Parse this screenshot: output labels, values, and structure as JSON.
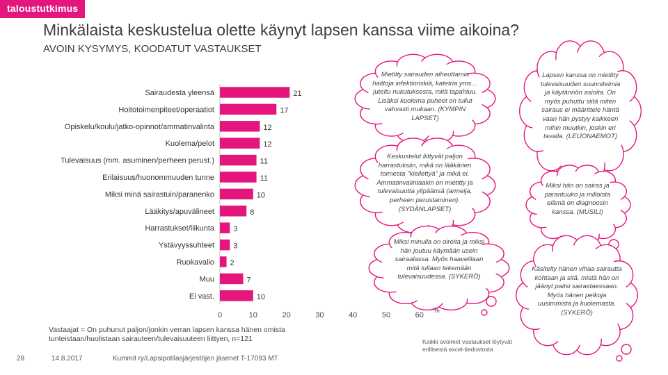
{
  "brand": "taloustutkimus",
  "title": "Minkälaista keskustelua olette käynyt lapsen kanssa viime aikoina?",
  "subtitle": "AVOIN KYSYMYS, KOODATUT VASTAUKSET",
  "chart_data": {
    "type": "bar",
    "orientation": "horizontal",
    "categories": [
      "Sairaudesta yleensä",
      "Hoitotoimenpiteet/operaatiot",
      "Opiskelu/koulu/jatko-opinnot/ammatinvalinta",
      "Kuolema/pelot",
      "Tulevaisuus (mm. asuminen/perheen perust.)",
      "Erilaisuus/huonommuuden tunne",
      "Miksi minä sairastuin/paranenko",
      "Lääkitys/apuvälineet",
      "Harrastukset/liikunta",
      "Ystävyyssuhteet",
      "Ruokavalio",
      "Muu",
      "Ei vast."
    ],
    "values": [
      21,
      17,
      12,
      12,
      11,
      11,
      10,
      8,
      3,
      3,
      2,
      7,
      10
    ],
    "xlim": [
      0,
      60
    ],
    "xticks": [
      0,
      10,
      20,
      30,
      40,
      50,
      60
    ],
    "x_unit": "%",
    "color": "#e4167e"
  },
  "quotes": [
    "Mietitty sairauden aiheuttamia haittoja infektioriskiä, katetria yms… juteltu nukutuksesta, mitä tapahtuu. Lisäksi kuolema puheet on tullut vahvasti mukaan. (KYMPIN LAPSET)",
    "Keskustelut liittyvät paljon harrastuksiin, mikä on lääkärien toimesta \"kiellettyä\" ja mikä ei. Ammatinvalintaakin on mietitty ja tulevaisuutta ylipäänsä (armeija, perheen perustaminen). (SYDÄNLAPSET)",
    "Miksi minulla on oireita ja miksi hän joutuu käymään usein sairaalassa. Myös haaveillaan mitä tullaan tekemään tulevaisuudessa. (SYKERÖ)",
    "Lapsen kanssa on mietitty tulevaisuuden suunnitelmia ja käytännön asioita. On myös puhuttu siitä miten sairaus ei määrittele häntä vaan hän pystyy kaikkeen mihin muutkin, joskin eri tavalla. (LEIJONAEMOT)",
    "Miksi hän on sairas ja parantuuko ja milloista elämä on diagnoosin kanssa. (MUSILI)",
    "Käsitelty hänen vihaa sairautta kohtaan ja sitä, mistä hän on jäänyt paitsi sairastaessaan. Myös hänen pelkoja uusimmista ja kuolemasta. (SYKERÖ)"
  ],
  "footnote": {
    "label": "Vastaajat =",
    "text": "On puhunut paljon/jonkin verran lapsen kanssa hänen omista tunteistaan/huolistaan sairauteen/tulevaisuuteen liittyen, n=121"
  },
  "excel_note": "Kaikki avoimet vastaukset löytyvät erillisestä excel-tiedostosta",
  "page_number": "28",
  "date": "14.8.2017",
  "source": "Kummit ry/Lapsipotilasjärjestöjen jäsenet T-17093 MT"
}
